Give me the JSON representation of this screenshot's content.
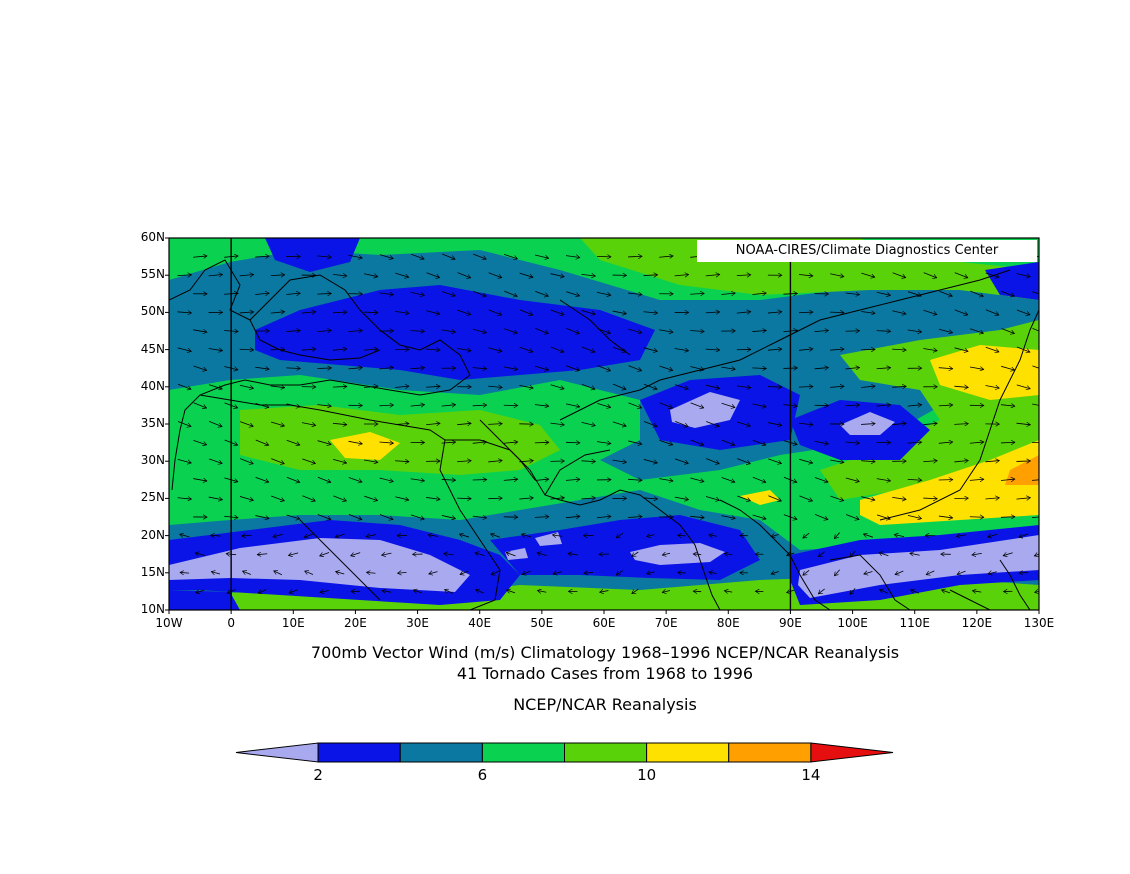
{
  "map": {
    "credit": "NOAA-CIRES/Climate Diagnostics Center",
    "lat_ticks": [
      "60N",
      "55N",
      "50N",
      "45N",
      "40N",
      "35N",
      "30N",
      "25N",
      "20N",
      "15N",
      "10N"
    ],
    "lat_values": [
      60,
      55,
      50,
      45,
      40,
      35,
      30,
      25,
      20,
      15,
      10
    ],
    "lon_ticks": [
      "10W",
      "0",
      "10E",
      "20E",
      "30E",
      "40E",
      "50E",
      "60E",
      "70E",
      "80E",
      "90E",
      "100E",
      "110E",
      "120E",
      "130E"
    ],
    "lon_values": [
      -10,
      0,
      10,
      20,
      30,
      40,
      50,
      60,
      70,
      80,
      90,
      100,
      110,
      120,
      130
    ],
    "lon_range": [
      -10,
      130
    ],
    "lat_range": [
      10,
      60
    ],
    "reference_meridians": [
      0,
      90
    ],
    "field": "700mb vector wind speed (m/s)"
  },
  "titles": {
    "line1": "700mb Vector Wind (m/s) Climatology 1968–1996 NCEP/NCAR Reanalysis",
    "line2": "41 Tornado Cases from 1968 to 1996",
    "line3": "NCEP/NCAR Reanalysis"
  },
  "colorbar": {
    "colors": [
      "#a9a9f0",
      "#0a14e6",
      "#0a78a0",
      "#0ad250",
      "#5ad20a",
      "#ffe100",
      "#ffa000",
      "#e60f0f"
    ],
    "labels": [
      "2",
      "6",
      "10",
      "14"
    ],
    "label_values": [
      2,
      6,
      10,
      14
    ],
    "levels": [
      2,
      4,
      6,
      8,
      10,
      12,
      14
    ]
  }
}
